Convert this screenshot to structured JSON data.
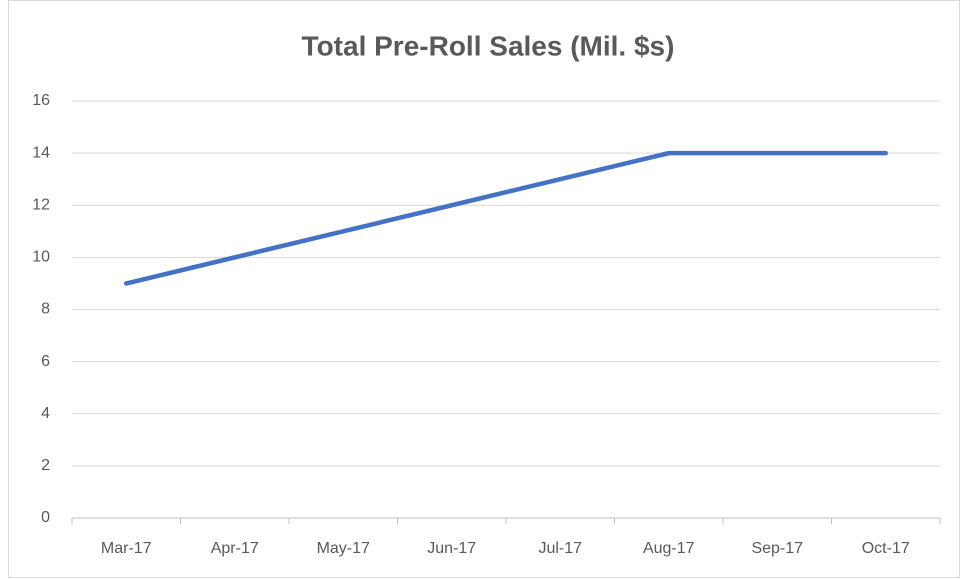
{
  "chart_data": {
    "type": "line",
    "title": "Total Pre-Roll Sales (Mil. $s)",
    "categories": [
      "Mar-17",
      "Apr-17",
      "May-17",
      "Jun-17",
      "Jul-17",
      "Aug-17",
      "Sep-17",
      "Oct-17"
    ],
    "values": [
      9,
      10,
      11,
      12,
      13,
      14,
      14,
      14
    ],
    "color": "#4472c4",
    "ylim": [
      0,
      16
    ],
    "yticks": [
      0,
      2,
      4,
      6,
      8,
      10,
      12,
      14,
      16
    ],
    "grid": true
  }
}
